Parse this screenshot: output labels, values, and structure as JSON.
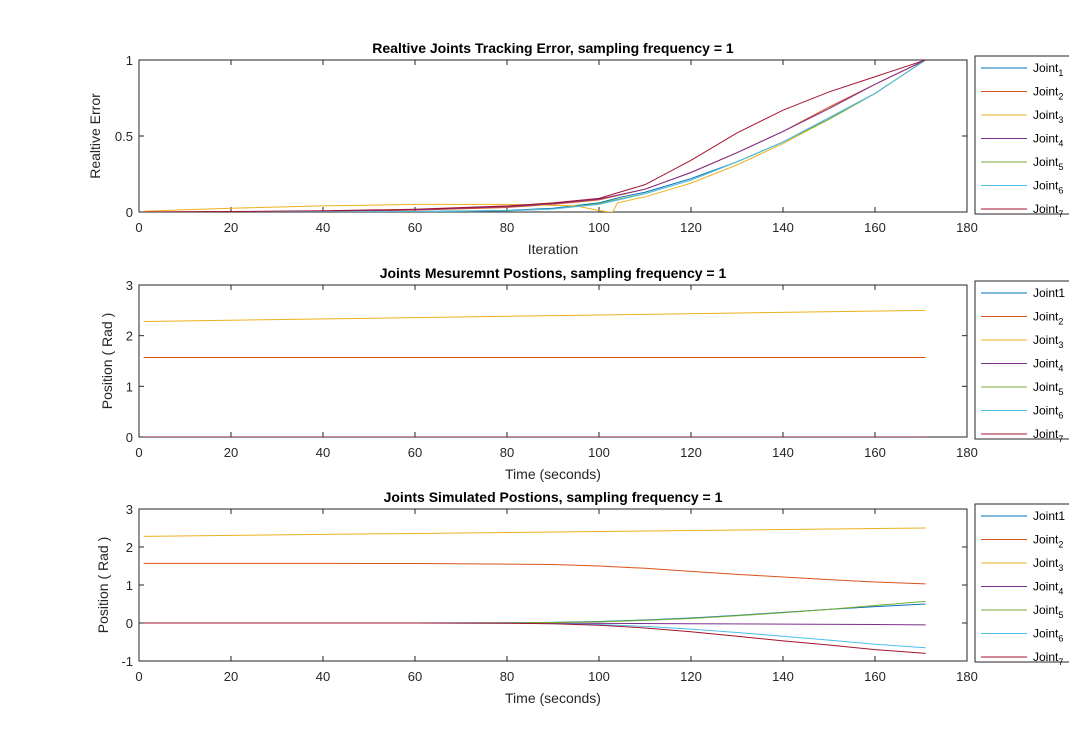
{
  "colors": {
    "Joint1": "#0072BD",
    "Joint2": "#D95319",
    "Joint3": "#EDB120",
    "Joint4": "#7E2F8E",
    "Joint5": "#77AC30",
    "Joint6": "#4DBEEE",
    "Joint7": "#A2142F"
  },
  "legend_labels": [
    {
      "base": "Joint",
      "sub": "1"
    },
    {
      "base": "Joint",
      "sub": "2"
    },
    {
      "base": "Joint",
      "sub": "3"
    },
    {
      "base": "Joint",
      "sub": "4"
    },
    {
      "base": "Joint",
      "sub": "5"
    },
    {
      "base": "Joint",
      "sub": "6"
    },
    {
      "base": "Joint",
      "sub": "7"
    }
  ],
  "chart_data": [
    {
      "type": "line",
      "title": "Realtive Joints Tracking Error, sampling frequency = 1",
      "xlabel": "Iteration",
      "ylabel": "Realtive Error",
      "xlim": [
        0,
        180
      ],
      "ylim": [
        0,
        1
      ],
      "xticks": [
        0,
        20,
        40,
        60,
        80,
        100,
        120,
        140,
        160,
        180
      ],
      "yticks": [
        0,
        0.5,
        1
      ],
      "legend": "right-outside",
      "series": [
        {
          "key": "Joint1",
          "x": [
            1,
            20,
            40,
            60,
            80,
            90,
            100,
            105,
            110,
            120,
            130,
            140,
            150,
            160,
            171
          ],
          "y": [
            0,
            0,
            0,
            0.003,
            0.01,
            0.025,
            0.06,
            0.1,
            0.13,
            0.22,
            0.33,
            0.46,
            0.62,
            0.78,
            1.0
          ]
        },
        {
          "key": "Joint2",
          "x": [
            1,
            20,
            40,
            60,
            80,
            90,
            100,
            110,
            120,
            130,
            140,
            150,
            160,
            171
          ],
          "y": [
            0,
            0.002,
            0.005,
            0.012,
            0.03,
            0.05,
            0.08,
            0.15,
            0.26,
            0.39,
            0.53,
            0.69,
            0.84,
            1.0
          ]
        },
        {
          "key": "Joint3",
          "x": [
            1,
            10,
            20,
            40,
            60,
            80,
            95,
            100,
            102,
            103,
            104,
            110,
            120,
            130,
            140,
            150,
            160,
            171
          ],
          "y": [
            0.005,
            0.015,
            0.025,
            0.04,
            0.05,
            0.05,
            0.04,
            0.01,
            0.0,
            0.0,
            0.06,
            0.1,
            0.19,
            0.31,
            0.45,
            0.61,
            0.78,
            1.0
          ]
        },
        {
          "key": "Joint4",
          "x": [
            1,
            20,
            40,
            60,
            80,
            90,
            100,
            110,
            120,
            130,
            140,
            150,
            160,
            171
          ],
          "y": [
            0,
            0.002,
            0.006,
            0.015,
            0.035,
            0.055,
            0.085,
            0.15,
            0.26,
            0.39,
            0.53,
            0.68,
            0.84,
            1.0
          ]
        },
        {
          "key": "Joint5",
          "x": [
            1,
            20,
            40,
            60,
            80,
            90,
            100,
            105,
            110,
            120,
            130,
            140,
            150,
            160,
            171
          ],
          "y": [
            0,
            0,
            0,
            0.002,
            0.008,
            0.02,
            0.055,
            0.09,
            0.12,
            0.21,
            0.33,
            0.46,
            0.61,
            0.78,
            1.0
          ]
        },
        {
          "key": "Joint6",
          "x": [
            1,
            20,
            40,
            60,
            80,
            90,
            100,
            105,
            110,
            120,
            130,
            140,
            150,
            160,
            171
          ],
          "y": [
            0,
            0,
            0,
            0.002,
            0.008,
            0.02,
            0.05,
            0.085,
            0.12,
            0.21,
            0.33,
            0.46,
            0.62,
            0.78,
            1.0
          ]
        },
        {
          "key": "Joint7",
          "x": [
            1,
            20,
            40,
            60,
            80,
            90,
            100,
            110,
            120,
            130,
            140,
            150,
            160,
            171
          ],
          "y": [
            0,
            0.003,
            0.008,
            0.018,
            0.04,
            0.06,
            0.09,
            0.18,
            0.34,
            0.52,
            0.67,
            0.79,
            0.89,
            1.0
          ]
        }
      ]
    },
    {
      "type": "line",
      "title": "Joints Mesuremnt Postions, sampling frequency = 1",
      "xlabel": "Time (seconds)",
      "ylabel": "Position ( Rad )",
      "xlim": [
        0,
        180
      ],
      "ylim": [
        0,
        3
      ],
      "xticks": [
        0,
        20,
        40,
        60,
        80,
        100,
        120,
        140,
        160,
        180
      ],
      "yticks": [
        0,
        1,
        2,
        3
      ],
      "legend": "right-outside",
      "series": [
        {
          "key": "Joint1",
          "x": [
            1,
            171
          ],
          "y": [
            0,
            0
          ]
        },
        {
          "key": "Joint2",
          "x": [
            1,
            171
          ],
          "y": [
            1.57,
            1.57
          ]
        },
        {
          "key": "Joint3",
          "x": [
            1,
            171
          ],
          "y": [
            2.28,
            2.5
          ]
        },
        {
          "key": "Joint4",
          "x": [
            1,
            171
          ],
          "y": [
            0,
            0
          ]
        },
        {
          "key": "Joint5",
          "x": [
            1,
            171
          ],
          "y": [
            0,
            0
          ]
        },
        {
          "key": "Joint6",
          "x": [
            1,
            171
          ],
          "y": [
            0,
            0
          ]
        },
        {
          "key": "Joint7",
          "x": [
            1,
            171
          ],
          "y": [
            0,
            0
          ]
        }
      ]
    },
    {
      "type": "line",
      "title": "Joints Simulated Postions, sampling frequency = 1",
      "xlabel": "Time (seconds)",
      "ylabel": "Position ( Rad )",
      "xlim": [
        0,
        180
      ],
      "ylim": [
        -1,
        3
      ],
      "xticks": [
        0,
        20,
        40,
        60,
        80,
        100,
        120,
        140,
        160,
        180
      ],
      "yticks": [
        -1,
        0,
        1,
        2,
        3
      ],
      "legend": "right-outside",
      "series": [
        {
          "key": "Joint1",
          "x": [
            1,
            60,
            80,
            90,
            100,
            110,
            120,
            130,
            140,
            150,
            160,
            171
          ],
          "y": [
            0,
            0,
            0.005,
            0.015,
            0.04,
            0.08,
            0.13,
            0.2,
            0.28,
            0.36,
            0.43,
            0.5
          ]
        },
        {
          "key": "Joint2",
          "x": [
            1,
            40,
            60,
            80,
            90,
            100,
            110,
            120,
            130,
            140,
            150,
            160,
            171
          ],
          "y": [
            1.57,
            1.57,
            1.565,
            1.55,
            1.54,
            1.5,
            1.44,
            1.36,
            1.28,
            1.21,
            1.14,
            1.08,
            1.03
          ]
        },
        {
          "key": "Joint3",
          "x": [
            1,
            171
          ],
          "y": [
            2.28,
            2.5
          ]
        },
        {
          "key": "Joint4",
          "x": [
            1,
            80,
            100,
            120,
            140,
            160,
            171
          ],
          "y": [
            0,
            0,
            -0.01,
            -0.02,
            -0.03,
            -0.04,
            -0.05
          ]
        },
        {
          "key": "Joint5",
          "x": [
            1,
            60,
            80,
            90,
            100,
            110,
            120,
            130,
            140,
            150,
            160,
            171
          ],
          "y": [
            0,
            0,
            0.005,
            0.012,
            0.03,
            0.07,
            0.12,
            0.19,
            0.27,
            0.36,
            0.46,
            0.57
          ]
        },
        {
          "key": "Joint6",
          "x": [
            1,
            60,
            80,
            90,
            100,
            110,
            120,
            130,
            140,
            150,
            160,
            171
          ],
          "y": [
            0,
            0,
            -0.005,
            -0.015,
            -0.04,
            -0.09,
            -0.16,
            -0.25,
            -0.35,
            -0.45,
            -0.56,
            -0.65
          ]
        },
        {
          "key": "Joint7",
          "x": [
            1,
            60,
            80,
            90,
            100,
            110,
            120,
            130,
            140,
            150,
            160,
            171
          ],
          "y": [
            0,
            0,
            -0.005,
            -0.02,
            -0.06,
            -0.13,
            -0.23,
            -0.35,
            -0.47,
            -0.58,
            -0.7,
            -0.8
          ]
        }
      ]
    }
  ]
}
